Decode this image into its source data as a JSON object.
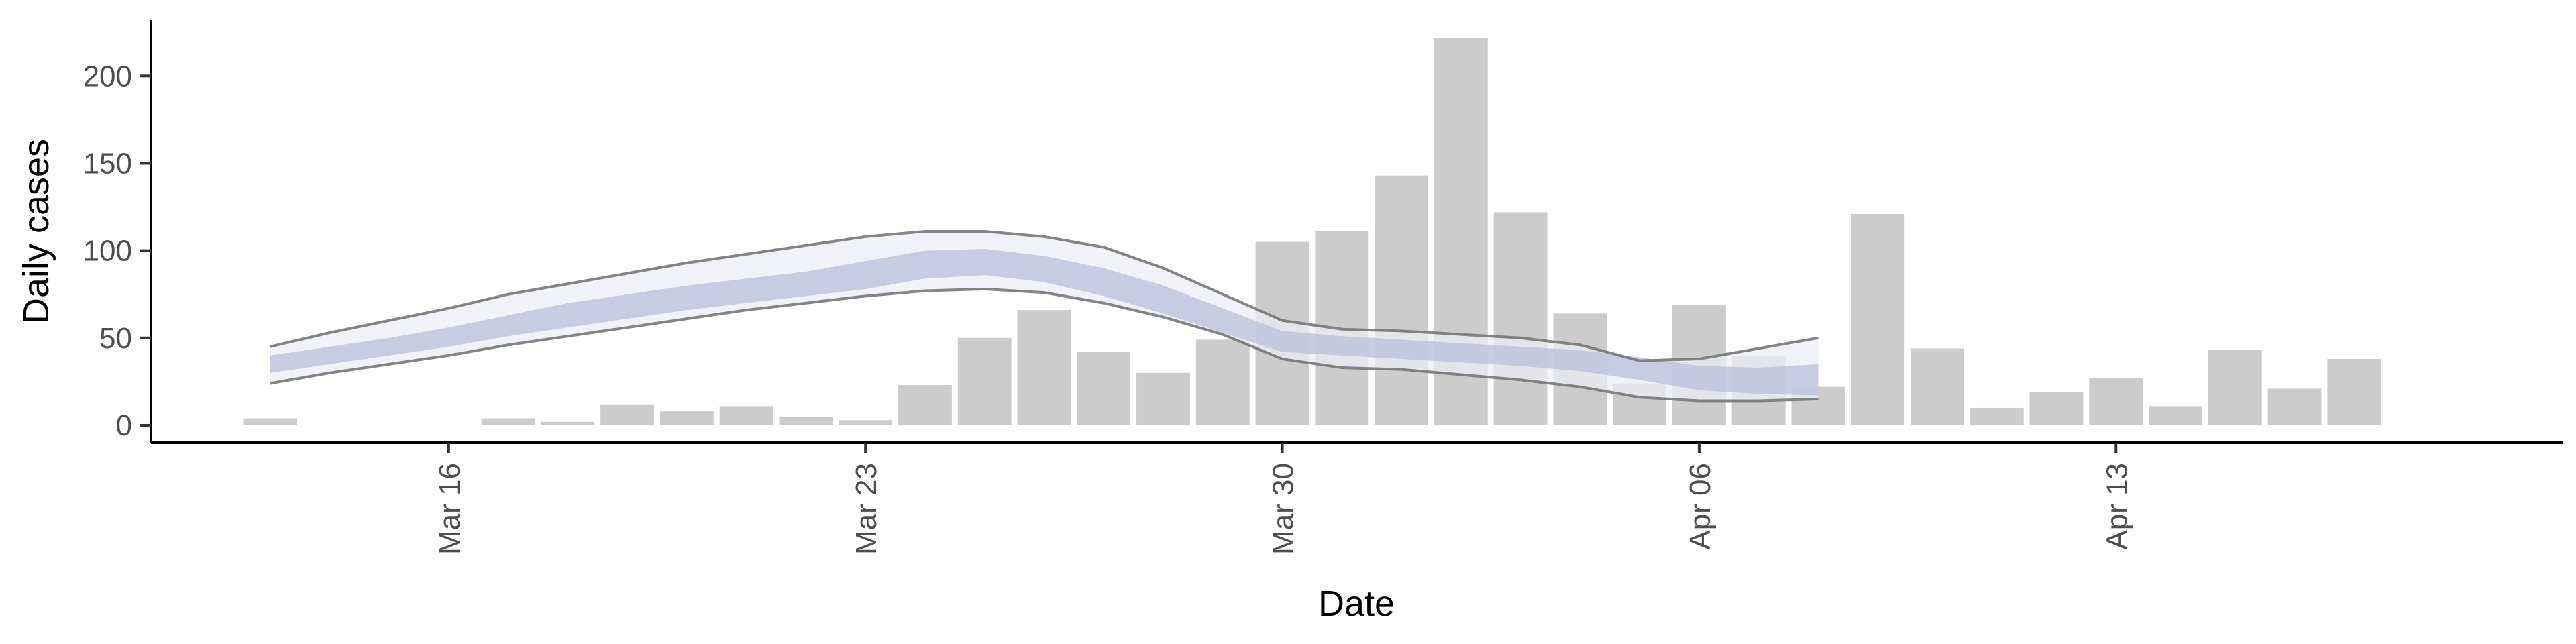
{
  "chart_data": {
    "type": "bar",
    "xlabel": "Date",
    "ylabel": "Daily cases",
    "ylim": [
      -10,
      232
    ],
    "xlim": [
      "2020-03-11T12:00",
      "2020-04-21T00:00"
    ],
    "grid": false,
    "x_ticks": [
      {
        "date": "2020-03-16",
        "label": "Mar 16"
      },
      {
        "date": "2020-03-23",
        "label": "Mar 23"
      },
      {
        "date": "2020-03-30",
        "label": "Mar 30"
      },
      {
        "date": "2020-04-06",
        "label": "Apr 06"
      },
      {
        "date": "2020-04-13",
        "label": "Apr 13"
      }
    ],
    "y_ticks": [
      {
        "value": 0,
        "label": "0"
      },
      {
        "value": 50,
        "label": "50"
      },
      {
        "value": 100,
        "label": "100"
      },
      {
        "value": 150,
        "label": "150"
      },
      {
        "value": 200,
        "label": "200"
      }
    ],
    "bars": {
      "color": "#cccccc",
      "dates": [
        "2020-03-13",
        "2020-03-14",
        "2020-03-15",
        "2020-03-16",
        "2020-03-17",
        "2020-03-18",
        "2020-03-19",
        "2020-03-20",
        "2020-03-21",
        "2020-03-22",
        "2020-03-23",
        "2020-03-24",
        "2020-03-25",
        "2020-03-26",
        "2020-03-27",
        "2020-03-28",
        "2020-03-29",
        "2020-03-30",
        "2020-03-31",
        "2020-04-01",
        "2020-04-02",
        "2020-04-03",
        "2020-04-04",
        "2020-04-05",
        "2020-04-06",
        "2020-04-07",
        "2020-04-08",
        "2020-04-09",
        "2020-04-10",
        "2020-04-11",
        "2020-04-12",
        "2020-04-13",
        "2020-04-14",
        "2020-04-15",
        "2020-04-16",
        "2020-04-17",
        "2020-04-18",
        "2020-04-19"
      ],
      "values": [
        4,
        0,
        0,
        0,
        4,
        2,
        12,
        8,
        11,
        5,
        3,
        23,
        50,
        66,
        42,
        30,
        49,
        105,
        111,
        143,
        222,
        122,
        64,
        24,
        69,
        40,
        22,
        121,
        44,
        10,
        19,
        27,
        11,
        43,
        21,
        38,
        0,
        0
      ]
    },
    "trend": {
      "band_color": "#bcc3d9",
      "band_fill": "#eceef5",
      "line_color": "#777777",
      "dates": [
        "2020-03-13",
        "2020-03-14",
        "2020-03-15",
        "2020-03-16",
        "2020-03-17",
        "2020-03-18",
        "2020-03-19",
        "2020-03-20",
        "2020-03-21",
        "2020-03-22",
        "2020-03-23",
        "2020-03-24",
        "2020-03-25",
        "2020-03-26",
        "2020-03-27",
        "2020-03-28",
        "2020-03-29",
        "2020-03-30",
        "2020-03-31",
        "2020-04-01",
        "2020-04-02",
        "2020-04-03",
        "2020-04-04",
        "2020-04-05",
        "2020-04-06",
        "2020-04-07",
        "2020-04-08"
      ],
      "median": [
        35,
        40,
        45,
        50,
        57,
        63,
        68,
        73,
        77,
        81,
        86,
        92,
        94,
        90,
        82,
        72,
        60,
        48,
        45,
        43,
        41,
        39,
        37,
        32,
        27,
        25,
        26
      ],
      "inner_lower": [
        30,
        35,
        40,
        45,
        51,
        56,
        61,
        66,
        70,
        74,
        78,
        84,
        86,
        82,
        74,
        64,
        53,
        42,
        40,
        38,
        36,
        34,
        31,
        26,
        20,
        18,
        17
      ],
      "inner_upper": [
        40,
        45,
        50,
        56,
        63,
        70,
        75,
        80,
        84,
        88,
        94,
        100,
        101,
        97,
        90,
        80,
        67,
        54,
        51,
        49,
        47,
        45,
        43,
        39,
        34,
        33,
        35
      ],
      "outer_lower": [
        24,
        30,
        35,
        40,
        46,
        51,
        56,
        61,
        66,
        70,
        74,
        77,
        78,
        76,
        70,
        62,
        52,
        38,
        33,
        32,
        29,
        26,
        22,
        16,
        14,
        14,
        15
      ],
      "outer_upper": [
        45,
        53,
        60,
        67,
        75,
        81,
        87,
        93,
        98,
        103,
        108,
        111,
        111,
        108,
        102,
        90,
        75,
        60,
        55,
        54,
        52,
        50,
        46,
        37,
        38,
        44,
        50
      ]
    }
  }
}
